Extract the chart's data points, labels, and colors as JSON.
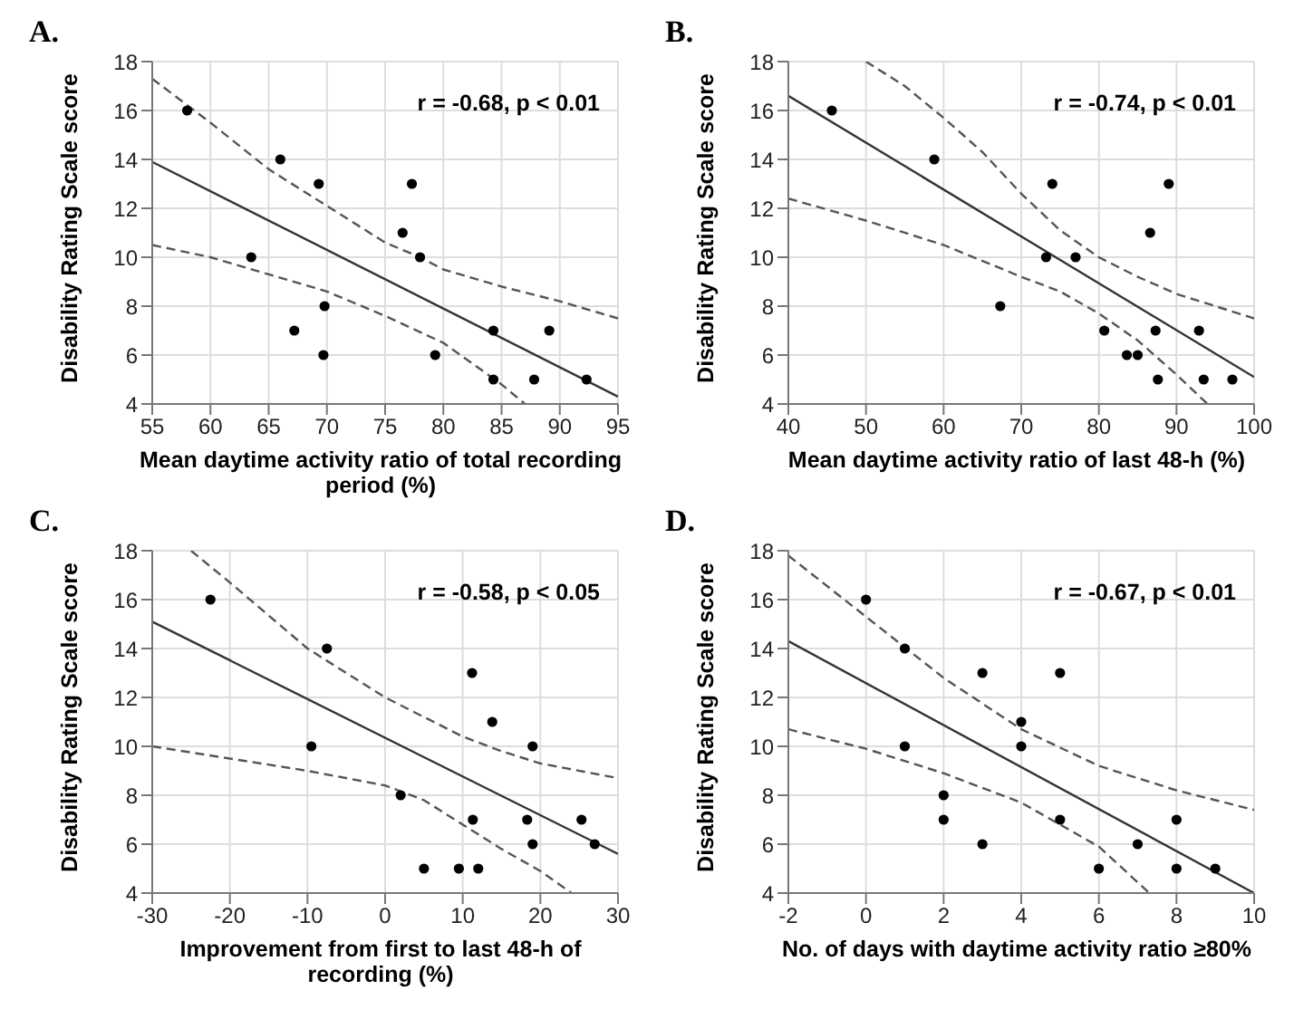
{
  "chart_data": [
    {
      "type": "scatter",
      "title": "A.",
      "xlabel": "Mean daytime activity ratio of total recording period (%)",
      "ylabel": "Disability Rating Scale score",
      "annotations": [
        "r = -0.68, p < 0.01"
      ],
      "xlim": [
        55,
        95
      ],
      "xticks": [
        55,
        60,
        65,
        70,
        75,
        80,
        85,
        90,
        95
      ],
      "ylim": [
        4,
        18
      ],
      "yticks": [
        4,
        6,
        8,
        10,
        12,
        14,
        16,
        18
      ],
      "grid": true,
      "series": [
        {
          "marker": "circle",
          "color": "#000000",
          "x": [
            58,
            63.5,
            66,
            67.2,
            69.3,
            69.7,
            69.8,
            76.5,
            77.3,
            78,
            79.3,
            84.3,
            84.3,
            87.8,
            89.1,
            92.3
          ],
          "values": [
            16,
            10,
            14,
            7,
            13,
            6,
            8,
            11,
            13,
            10,
            6,
            7,
            5,
            5,
            7,
            5
          ]
        },
        {
          "type": "line",
          "color": "#333333",
          "line_style": "solid",
          "x": [
            55,
            95
          ],
          "values": [
            13.9,
            4.3
          ]
        },
        {
          "type": "line",
          "color": "#555555",
          "line_style": "dashed",
          "x": [
            55,
            60,
            65,
            70,
            75,
            78,
            80,
            85,
            90,
            95
          ],
          "values": [
            17.3,
            15.5,
            13.6,
            12.1,
            10.6,
            10,
            9.5,
            8.8,
            8.2,
            7.5
          ]
        },
        {
          "type": "line",
          "color": "#555555",
          "line_style": "dashed",
          "x": [
            55,
            60,
            65,
            70,
            75,
            80,
            85,
            87
          ],
          "values": [
            10.5,
            10,
            9.3,
            8.6,
            7.6,
            6.5,
            4.8,
            4
          ]
        }
      ]
    },
    {
      "type": "scatter",
      "title": "B.",
      "xlabel": "Mean daytime activity ratio of last 48-h (%)",
      "ylabel": "Disability Rating Scale score",
      "annotations": [
        "r = -0.74, p < 0.01"
      ],
      "xlim": [
        40,
        100
      ],
      "xticks": [
        40,
        50,
        60,
        70,
        80,
        90,
        100
      ],
      "ylim": [
        4,
        18
      ],
      "yticks": [
        4,
        6,
        8,
        10,
        12,
        14,
        16,
        18
      ],
      "grid": true,
      "series": [
        {
          "marker": "circle",
          "color": "#000000",
          "x": [
            45.6,
            58.8,
            67.3,
            73.2,
            74,
            77,
            80.7,
            83.6,
            85,
            86.6,
            87.3,
            87.6,
            89,
            92.9,
            93.5,
            97.2
          ],
          "values": [
            16,
            14,
            8,
            10,
            13,
            10,
            7,
            6,
            6,
            11,
            7,
            5,
            13,
            7,
            5,
            5
          ]
        },
        {
          "type": "line",
          "color": "#333333",
          "line_style": "solid",
          "x": [
            40,
            100
          ],
          "values": [
            16.6,
            5.1
          ]
        },
        {
          "type": "line",
          "color": "#555555",
          "line_style": "dashed",
          "x": [
            50,
            55,
            60,
            65,
            70,
            75,
            80,
            85,
            90,
            95,
            100
          ],
          "values": [
            18,
            17,
            15.7,
            14.3,
            12.6,
            11.1,
            10,
            9.2,
            8.5,
            8,
            7.5
          ]
        },
        {
          "type": "line",
          "color": "#555555",
          "line_style": "dashed",
          "x": [
            40,
            50,
            60,
            70,
            75,
            80,
            85,
            90,
            94
          ],
          "values": [
            12.4,
            11.5,
            10.5,
            9.2,
            8.6,
            7.7,
            6.6,
            5.2,
            4
          ]
        }
      ]
    },
    {
      "type": "scatter",
      "title": "C.",
      "xlabel": "Improvement from first to last 48-h of recording (%)",
      "ylabel": "Disability Rating Scale score",
      "annotations": [
        "r = -0.58, p < 0.05"
      ],
      "xlim": [
        -30,
        30
      ],
      "xticks": [
        -30,
        -20,
        -10,
        0,
        10,
        20,
        30
      ],
      "ylim": [
        4,
        18
      ],
      "yticks": [
        4,
        6,
        8,
        10,
        12,
        14,
        16,
        18
      ],
      "grid": true,
      "series": [
        {
          "marker": "circle",
          "color": "#000000",
          "x": [
            -22.5,
            -9.5,
            -7.5,
            2,
            5,
            9.5,
            11.2,
            11.3,
            12,
            13.8,
            18.3,
            19,
            19,
            25.3,
            27
          ],
          "values": [
            16,
            10,
            14,
            8,
            5,
            5,
            13,
            7,
            5,
            11,
            7,
            10,
            6,
            7,
            6
          ]
        },
        {
          "type": "line",
          "color": "#333333",
          "line_style": "solid",
          "x": [
            -30,
            30
          ],
          "values": [
            15.1,
            5.6
          ]
        },
        {
          "type": "line",
          "color": "#555555",
          "line_style": "dashed",
          "x": [
            -25,
            -20,
            -10,
            0,
            10,
            15,
            20,
            30
          ],
          "values": [
            18,
            16.7,
            14,
            12,
            10.4,
            9.8,
            9.3,
            8.7
          ]
        },
        {
          "type": "line",
          "color": "#555555",
          "line_style": "dashed",
          "x": [
            -30,
            -20,
            -10,
            0,
            5,
            10,
            15,
            20,
            24
          ],
          "values": [
            10,
            9.5,
            9,
            8.4,
            7.8,
            6.8,
            5.8,
            4.9,
            4
          ]
        }
      ]
    },
    {
      "type": "scatter",
      "title": "D.",
      "xlabel": "No. of days with daytime activity ratio ≥80%",
      "ylabel": "Disability Rating Scale score",
      "annotations": [
        "r = -0.67, p < 0.01"
      ],
      "xlim": [
        -2,
        10
      ],
      "xticks": [
        -2,
        0,
        2,
        4,
        6,
        8,
        10
      ],
      "ylim": [
        4,
        18
      ],
      "yticks": [
        4,
        6,
        8,
        10,
        12,
        14,
        16,
        18
      ],
      "grid": true,
      "series": [
        {
          "marker": "circle",
          "color": "#000000",
          "x": [
            0,
            1,
            1,
            2,
            2,
            3,
            3,
            4,
            4,
            5,
            5,
            6,
            7,
            8,
            8,
            9
          ],
          "values": [
            16,
            14,
            10,
            8,
            7,
            13,
            6,
            11,
            10,
            13,
            7,
            5,
            6,
            7,
            5,
            5
          ]
        },
        {
          "type": "line",
          "color": "#333333",
          "line_style": "solid",
          "x": [
            -2,
            10
          ],
          "values": [
            14.3,
            4
          ]
        },
        {
          "type": "line",
          "color": "#555555",
          "line_style": "dashed",
          "x": [
            -2,
            0,
            2,
            4,
            6,
            8,
            10
          ],
          "values": [
            17.8,
            15.3,
            12.8,
            10.7,
            9.2,
            8.2,
            7.4
          ]
        },
        {
          "type": "line",
          "color": "#555555",
          "line_style": "dashed",
          "x": [
            -2,
            0,
            2,
            4,
            6,
            7.3
          ],
          "values": [
            10.7,
            9.9,
            8.9,
            7.7,
            5.9,
            4
          ]
        }
      ]
    }
  ]
}
